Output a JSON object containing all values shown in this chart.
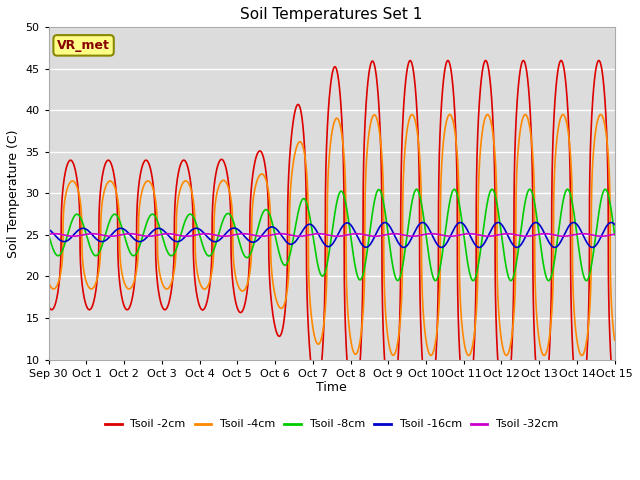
{
  "title": "Soil Temperatures Set 1",
  "xlabel": "Time",
  "ylabel": "Soil Temperature (C)",
  "ylim": [
    10,
    50
  ],
  "yticks": [
    10,
    15,
    20,
    25,
    30,
    35,
    40,
    45,
    50
  ],
  "background_color": "#dcdcdc",
  "annotation_text": "VR_met",
  "annotation_box_facecolor": "#ffff88",
  "annotation_box_edgecolor": "#888800",
  "annotation_text_color": "#880000",
  "series": [
    {
      "label": "Tsoil -2cm",
      "color": "#dd0000",
      "lw": 1.2
    },
    {
      "label": "Tsoil -4cm",
      "color": "#ff8800",
      "lw": 1.2
    },
    {
      "label": "Tsoil -8cm",
      "color": "#00cc00",
      "lw": 1.2
    },
    {
      "label": "Tsoil -16cm",
      "color": "#0000cc",
      "lw": 1.2
    },
    {
      "label": "Tsoil -32cm",
      "color": "#cc00cc",
      "lw": 1.2
    }
  ],
  "x_tick_labels": [
    "Sep 30",
    "Oct 1",
    "Oct 2",
    "Oct 3",
    "Oct 4",
    "Oct 5",
    "Oct 6",
    "Oct 7",
    "Oct 8",
    "Oct 9",
    "Oct 10",
    "Oct 11",
    "Oct 12",
    "Oct 13",
    "Oct 14",
    "Oct 15"
  ],
  "n_days": 15,
  "ppd": 240,
  "base_mean": 25.0,
  "phase_2cm": 0.33,
  "phase_4cm": 0.38,
  "phase_8cm": 0.5,
  "phase_16cm": 0.66,
  "phase_32cm": 0.9,
  "amp2_early": 9.0,
  "amp2_late": 21.0,
  "amp2_sharpness": 3.0,
  "amp4_early": 6.5,
  "amp4_late": 14.5,
  "amp4_sharpness": 2.5,
  "amp8_early": 2.5,
  "amp8_late": 5.5,
  "amp16_early": 0.8,
  "amp16_late": 1.5,
  "amp32_val": 0.15,
  "transition_day": 6.5
}
